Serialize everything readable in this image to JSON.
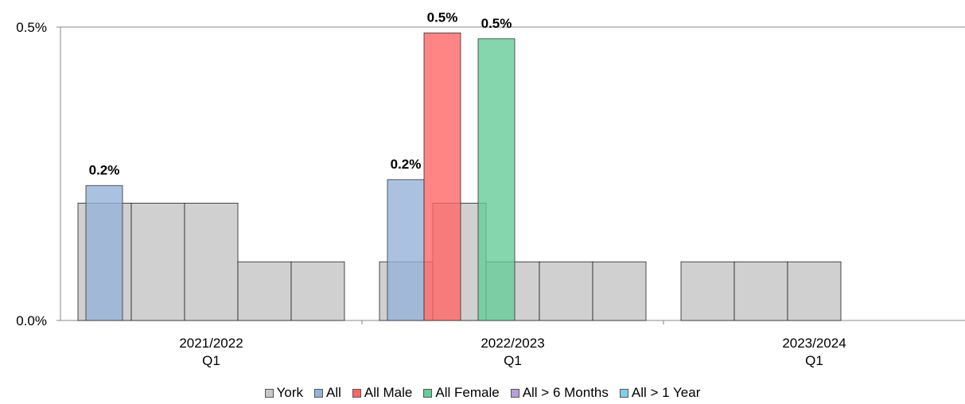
{
  "chart_data": {
    "type": "bar",
    "ylim": [
      0,
      0.5
    ],
    "yticks": [
      {
        "value": 0,
        "label": "0.0%"
      },
      {
        "value": 0.5,
        "label": "0.5%"
      }
    ],
    "categories": [
      {
        "line1": "2021/2022",
        "line2": "Q1"
      },
      {
        "line1": "2022/2023",
        "line2": "Q1"
      },
      {
        "line1": "2023/2024",
        "line2": "Q1"
      }
    ],
    "york_values": [
      [
        0.2,
        0.2,
        0.2,
        0.1,
        0.1
      ],
      [
        0.1,
        0.2,
        0.1,
        0.1,
        0.1
      ],
      [
        0.1,
        0.1,
        0.1
      ]
    ],
    "series": [
      {
        "name": "York",
        "color": "#c8c8c8"
      },
      {
        "name": "All",
        "color": "#95b3d7",
        "values": [
          0.23,
          0.24,
          null
        ],
        "labels": [
          "0.2%",
          "0.2%",
          ""
        ]
      },
      {
        "name": "All Male",
        "color": "#ff6666",
        "values": [
          null,
          0.49,
          null
        ],
        "labels": [
          "",
          "0.5%",
          ""
        ]
      },
      {
        "name": "All Female",
        "color": "#66cc99",
        "values": [
          null,
          0.48,
          null
        ],
        "labels": [
          "",
          "0.5%",
          ""
        ]
      },
      {
        "name": "All > 6 Months",
        "color": "#b4a0d8",
        "values": [
          null,
          null,
          null
        ]
      },
      {
        "name": "All > 1 Year",
        "color": "#7fd0ec",
        "values": [
          null,
          null,
          null
        ]
      }
    ],
    "grid": false,
    "legend_position": "bottom"
  }
}
